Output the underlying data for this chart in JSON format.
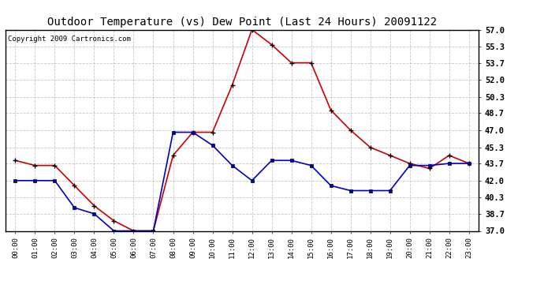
{
  "title": "Outdoor Temperature (vs) Dew Point (Last 24 Hours) 20091122",
  "copyright_text": "Copyright 2009 Cartronics.com",
  "x_labels": [
    "00:00",
    "01:00",
    "02:00",
    "03:00",
    "04:00",
    "05:00",
    "06:00",
    "07:00",
    "08:00",
    "09:00",
    "10:00",
    "11:00",
    "12:00",
    "13:00",
    "14:00",
    "15:00",
    "16:00",
    "17:00",
    "18:00",
    "19:00",
    "20:00",
    "21:00",
    "22:00",
    "23:00"
  ],
  "temp_red": [
    44.0,
    43.5,
    43.5,
    41.5,
    39.5,
    38.0,
    37.0,
    37.0,
    44.5,
    46.8,
    46.8,
    51.5,
    57.0,
    55.5,
    53.7,
    53.7,
    49.0,
    47.0,
    45.3,
    44.5,
    43.7,
    43.2,
    44.5,
    43.7
  ],
  "dew_blue": [
    42.0,
    42.0,
    42.0,
    39.3,
    38.7,
    37.0,
    37.0,
    37.0,
    46.8,
    46.8,
    45.5,
    43.5,
    42.0,
    44.0,
    44.0,
    43.5,
    41.5,
    41.0,
    41.0,
    41.0,
    43.5,
    43.5,
    43.7,
    43.7
  ],
  "ylim": [
    37.0,
    57.0
  ],
  "yticks": [
    37.0,
    38.7,
    40.3,
    42.0,
    43.7,
    45.3,
    47.0,
    48.7,
    50.3,
    52.0,
    53.7,
    55.3,
    57.0
  ],
  "bg_color": "#ffffff",
  "plot_bg_color": "#ffffff",
  "grid_color": "#b0b0b0",
  "red_color": "#cc0000",
  "blue_color": "#0000cc",
  "title_fontsize": 10,
  "copyright_fontsize": 6.5
}
